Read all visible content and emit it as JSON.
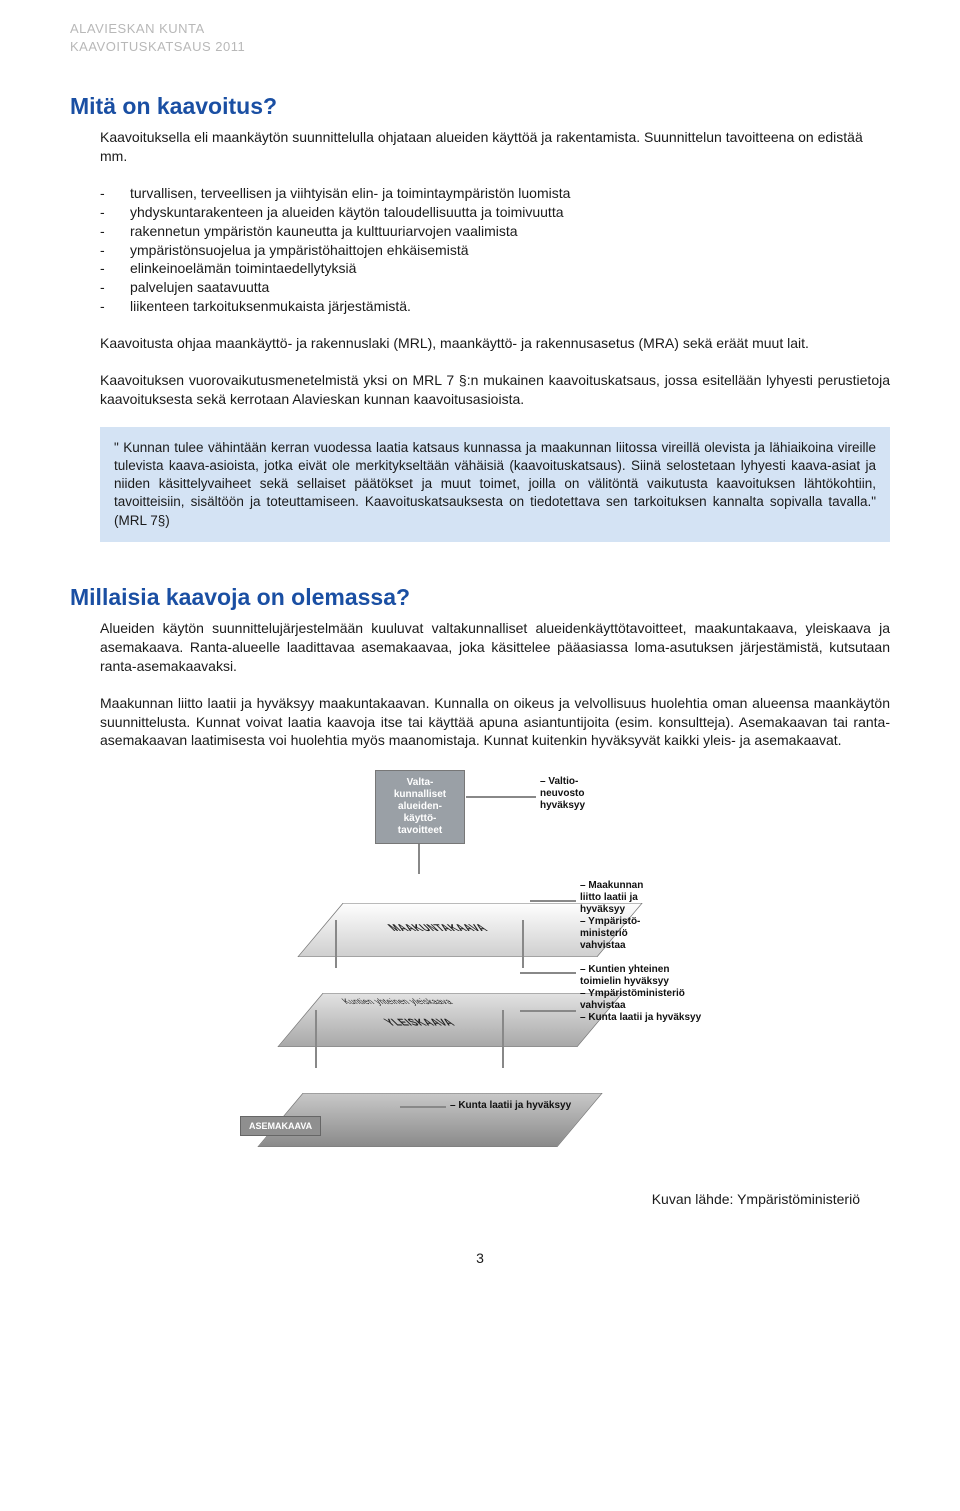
{
  "header": {
    "org": "ALAVIESKAN KUNTA",
    "sub": "KAAVOITUSKATSAUS 2011"
  },
  "section1": {
    "title": "Mitä on kaavoitus?",
    "intro": "Kaavoituksella eli maankäytön suunnittelulla ohjataan alueiden käyttöä ja rakentamista. Suunnittelun tavoitteena on edistää mm.",
    "bullets": [
      "turvallisen, terveellisen ja viihtyisän elin- ja toimintaympäristön luomista",
      "yhdyskuntarakenteen ja alueiden käytön taloudellisuutta ja toimivuutta",
      "rakennetun ympäristön kauneutta ja kulttuuriarvojen vaalimista",
      "ympäristönsuojelua ja ympäristöhaittojen ehkäisemistä",
      "elinkeinoelämän toimintaedellytyksiä",
      "palvelujen saatavuutta",
      "liikenteen tarkoituksenmukaista järjestämistä."
    ],
    "p1": "Kaavoitusta ohjaa maankäyttö- ja rakennuslaki (MRL), maankäyttö- ja rakennusasetus (MRA) sekä eräät muut lait.",
    "p2": "Kaavoituksen vuorovaikutusmenetelmistä yksi on MRL 7 §:n mukainen kaavoituskatsaus, jossa esitellään lyhyesti perustietoja kaavoituksesta sekä kerrotaan Alavieskan kunnan kaavoitusasioista.",
    "quote": "\" Kunnan tulee vähintään kerran vuodessa laatia katsaus kunnassa ja maakunnan liitossa vireillä olevista ja lähiaikoina vireille tulevista kaava-asioista, jotka eivät ole merkitykseltään vähäisiä (kaavoituskatsaus). Siinä selostetaan lyhyesti kaava-asiat ja niiden käsittelyvaiheet sekä sellaiset päätökset ja muut toimet, joilla on välitöntä vaikutusta kaavoituksen lähtökohtiin, tavoitteisiin, sisältöön ja toteuttamiseen. Kaavoituskatsauksesta on tiedotettava sen tarkoituksen kannalta sopivalla tavalla.\" (MRL 7§)"
  },
  "section2": {
    "title": "Millaisia kaavoja on olemassa?",
    "p1": "Alueiden käytön suunnittelujärjestelmään kuuluvat valtakunnalliset alueidenkäyttötavoitteet, maakuntakaava, yleiskaava ja asemakaava. Ranta-alueelle laadittavaa asemakaavaa, joka käsittelee pääasiassa loma-asutuksen järjestämistä, kutsutaan ranta-asemakaavaksi.",
    "p2": "Maakunnan liitto laatii ja hyväksyy maakuntakaavan. Kunnalla on oikeus ja velvollisuus huolehtia oman alueensa maankäytön suunnittelusta. Kunnat voivat laatia kaavoja itse tai käyttää apuna asiantuntijoita (esim. konsultteja).  Asemakaavan tai ranta-asemakaavan laatimisesta voi huolehtia myös maanomistaja. Kunnat kuitenkin hyväksyvät kaikki yleis- ja asemakaavat."
  },
  "diagram": {
    "topbox": "Valta-\nkunnalliset\nalueiden-\nkäyttö-\ntavoitteet",
    "note_top": "– Valtio-\nneuvosto\nhyväksyy",
    "layer1": {
      "label": "MAAKUNTAKAAVA",
      "note": "– Maakunnan\nliitto laatii ja\nhyväksyy\n– Ympäristö-\nministeriö\nvahvistaa"
    },
    "layer2": {
      "label": "YLEISKAAVA",
      "sublabel": "Kuntien yhteinen yleiskaava",
      "note": "– Kuntien yhteinen\ntoimielin hyväksyy\n– Ympäristöministeriö\nvahvistaa\n– Kunta laatii ja hyväksyy"
    },
    "layer3": {
      "label": "ASEMAKAAVA",
      "note": "– Kunta laatii ja hyväksyy"
    }
  },
  "caption": "Kuvan lähde: Ympäristöministeriö",
  "pagenum": "3",
  "colors": {
    "blue_heading": "#1a4fa3",
    "quote_bg": "#d4e3f4",
    "header_grey": "#b8b8b8"
  }
}
